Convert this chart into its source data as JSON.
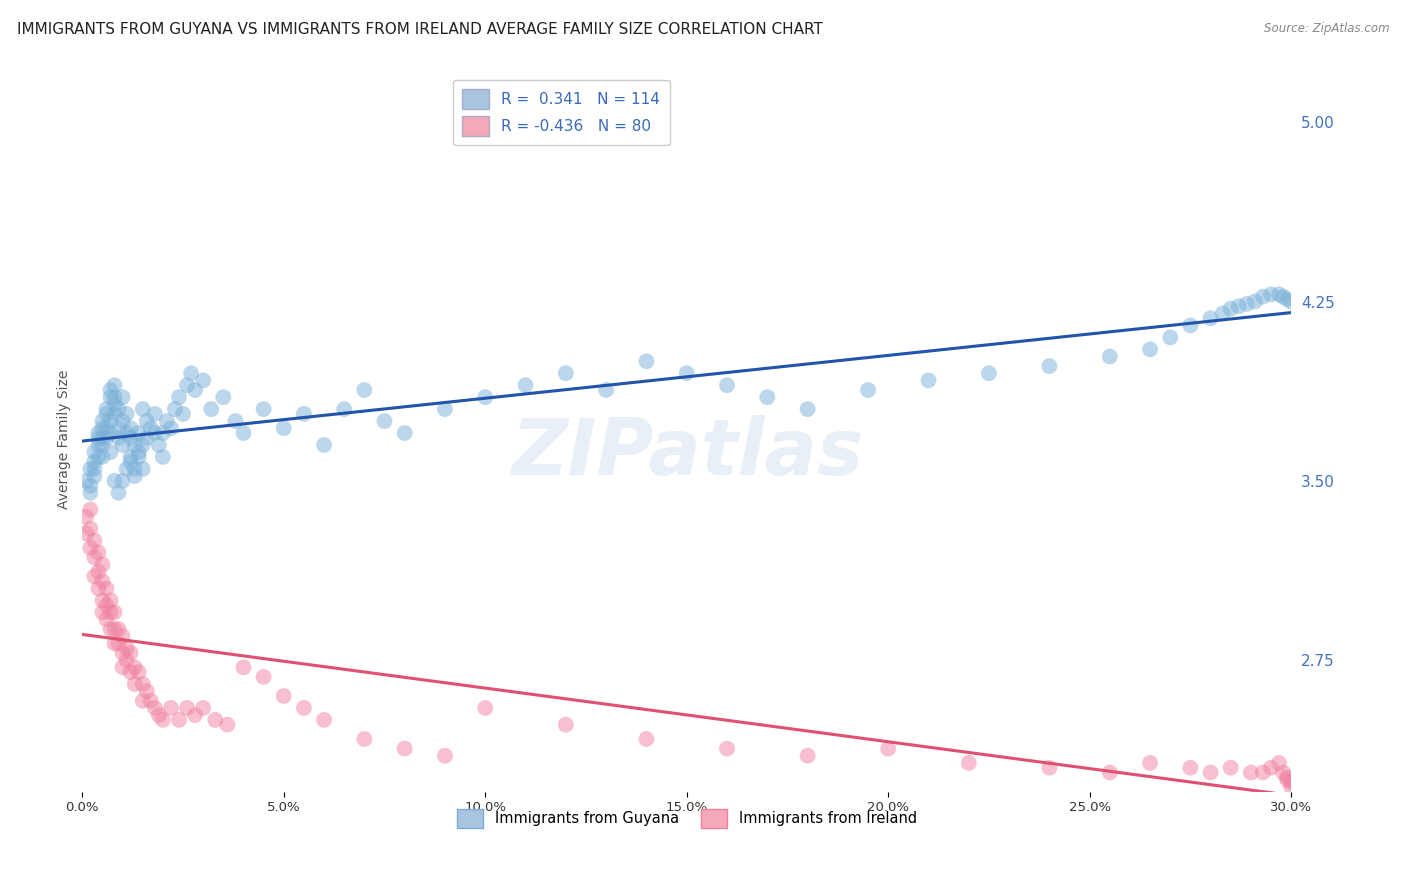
{
  "title": "IMMIGRANTS FROM GUYANA VS IMMIGRANTS FROM IRELAND AVERAGE FAMILY SIZE CORRELATION CHART",
  "source": "Source: ZipAtlas.com",
  "ylabel": "Average Family Size",
  "xmin": 0.0,
  "xmax": 0.3,
  "ymin": 2.2,
  "ymax": 5.15,
  "yticks_right": [
    2.75,
    3.5,
    4.25,
    5.0
  ],
  "ytick_labels_right": [
    "2.75",
    "3.50",
    "4.25",
    "5.00"
  ],
  "xtick_labels": [
    "0.0%",
    "5.0%",
    "10.0%",
    "15.0%",
    "20.0%",
    "25.0%",
    "30.0%"
  ],
  "xtick_values": [
    0.0,
    0.05,
    0.1,
    0.15,
    0.2,
    0.25,
    0.3
  ],
  "legend_entries": [
    {
      "label_r": "R =  0.341",
      "label_n": "N = 114",
      "color": "#a8c4e0"
    },
    {
      "label_r": "R = -0.436",
      "label_n": "N = 80",
      "color": "#f4a8b8"
    }
  ],
  "series_guyana": {
    "name": "Immigrants from Guyana",
    "scatter_color": "#7ab0d8",
    "line_color": "#2255aa",
    "x": [
      0.001,
      0.002,
      0.002,
      0.003,
      0.003,
      0.003,
      0.004,
      0.004,
      0.004,
      0.005,
      0.005,
      0.005,
      0.005,
      0.006,
      0.006,
      0.006,
      0.007,
      0.007,
      0.007,
      0.007,
      0.008,
      0.008,
      0.008,
      0.008,
      0.009,
      0.009,
      0.009,
      0.01,
      0.01,
      0.01,
      0.011,
      0.011,
      0.012,
      0.012,
      0.012,
      0.013,
      0.013,
      0.014,
      0.014,
      0.015,
      0.015,
      0.016,
      0.016,
      0.017,
      0.018,
      0.018,
      0.019,
      0.02,
      0.02,
      0.021,
      0.022,
      0.023,
      0.024,
      0.025,
      0.026,
      0.027,
      0.028,
      0.03,
      0.032,
      0.035,
      0.038,
      0.04,
      0.045,
      0.05,
      0.055,
      0.06,
      0.065,
      0.07,
      0.075,
      0.08,
      0.09,
      0.1,
      0.11,
      0.12,
      0.13,
      0.14,
      0.15,
      0.16,
      0.17,
      0.18,
      0.195,
      0.21,
      0.225,
      0.24,
      0.255,
      0.265,
      0.27,
      0.275,
      0.28,
      0.283,
      0.285,
      0.287,
      0.289,
      0.291,
      0.293,
      0.295,
      0.297,
      0.298,
      0.299,
      0.3,
      0.002,
      0.003,
      0.004,
      0.005,
      0.006,
      0.007,
      0.008,
      0.009,
      0.01,
      0.011,
      0.012,
      0.013,
      0.014,
      0.015
    ],
    "y": [
      3.5,
      3.55,
      3.45,
      3.62,
      3.58,
      3.52,
      3.7,
      3.68,
      3.65,
      3.72,
      3.75,
      3.68,
      3.6,
      3.78,
      3.8,
      3.72,
      3.85,
      3.88,
      3.75,
      3.7,
      3.82,
      3.78,
      3.9,
      3.85,
      3.72,
      3.68,
      3.8,
      3.75,
      3.65,
      3.85,
      3.7,
      3.78,
      3.68,
      3.72,
      3.6,
      3.65,
      3.55,
      3.7,
      3.62,
      3.65,
      3.8,
      3.75,
      3.68,
      3.72,
      3.7,
      3.78,
      3.65,
      3.7,
      3.6,
      3.75,
      3.72,
      3.8,
      3.85,
      3.78,
      3.9,
      3.95,
      3.88,
      3.92,
      3.8,
      3.85,
      3.75,
      3.7,
      3.8,
      3.72,
      3.78,
      3.65,
      3.8,
      3.88,
      3.75,
      3.7,
      3.8,
      3.85,
      3.9,
      3.95,
      3.88,
      4.0,
      3.95,
      3.9,
      3.85,
      3.8,
      3.88,
      3.92,
      3.95,
      3.98,
      4.02,
      4.05,
      4.1,
      4.15,
      4.18,
      4.2,
      4.22,
      4.23,
      4.24,
      4.25,
      4.27,
      4.28,
      4.28,
      4.27,
      4.26,
      4.25,
      3.48,
      3.55,
      3.6,
      3.65,
      3.68,
      3.62,
      3.5,
      3.45,
      3.5,
      3.55,
      3.58,
      3.52,
      3.6,
      3.55
    ]
  },
  "series_ireland": {
    "name": "Immigrants from Ireland",
    "scatter_color": "#f080a0",
    "line_color": "#e05070",
    "x": [
      0.001,
      0.001,
      0.002,
      0.002,
      0.002,
      0.003,
      0.003,
      0.003,
      0.004,
      0.004,
      0.004,
      0.005,
      0.005,
      0.005,
      0.005,
      0.006,
      0.006,
      0.006,
      0.007,
      0.007,
      0.007,
      0.008,
      0.008,
      0.008,
      0.009,
      0.009,
      0.01,
      0.01,
      0.01,
      0.011,
      0.011,
      0.012,
      0.012,
      0.013,
      0.013,
      0.014,
      0.015,
      0.015,
      0.016,
      0.017,
      0.018,
      0.019,
      0.02,
      0.022,
      0.024,
      0.026,
      0.028,
      0.03,
      0.033,
      0.036,
      0.04,
      0.045,
      0.05,
      0.055,
      0.06,
      0.07,
      0.08,
      0.09,
      0.1,
      0.12,
      0.14,
      0.16,
      0.18,
      0.2,
      0.22,
      0.24,
      0.255,
      0.265,
      0.275,
      0.28,
      0.285,
      0.29,
      0.293,
      0.295,
      0.297,
      0.298,
      0.299,
      0.299,
      0.3,
      0.3
    ],
    "y": [
      3.35,
      3.28,
      3.38,
      3.3,
      3.22,
      3.25,
      3.18,
      3.1,
      3.2,
      3.12,
      3.05,
      3.15,
      3.08,
      3.0,
      2.95,
      3.05,
      2.98,
      2.92,
      3.0,
      2.95,
      2.88,
      2.95,
      2.88,
      2.82,
      2.88,
      2.82,
      2.85,
      2.78,
      2.72,
      2.8,
      2.75,
      2.78,
      2.7,
      2.72,
      2.65,
      2.7,
      2.65,
      2.58,
      2.62,
      2.58,
      2.55,
      2.52,
      2.5,
      2.55,
      2.5,
      2.55,
      2.52,
      2.55,
      2.5,
      2.48,
      2.72,
      2.68,
      2.6,
      2.55,
      2.5,
      2.42,
      2.38,
      2.35,
      2.55,
      2.48,
      2.42,
      2.38,
      2.35,
      2.38,
      2.32,
      2.3,
      2.28,
      2.32,
      2.3,
      2.28,
      2.3,
      2.28,
      2.28,
      2.3,
      2.32,
      2.28,
      2.26,
      2.25,
      2.24,
      2.22
    ]
  },
  "watermark": "ZIPatlas",
  "background_color": "#ffffff",
  "grid_color": "#d0d8e8",
  "title_fontsize": 11,
  "axis_label_fontsize": 10,
  "tick_fontsize": 9.5,
  "right_tick_color": "#4472c4"
}
